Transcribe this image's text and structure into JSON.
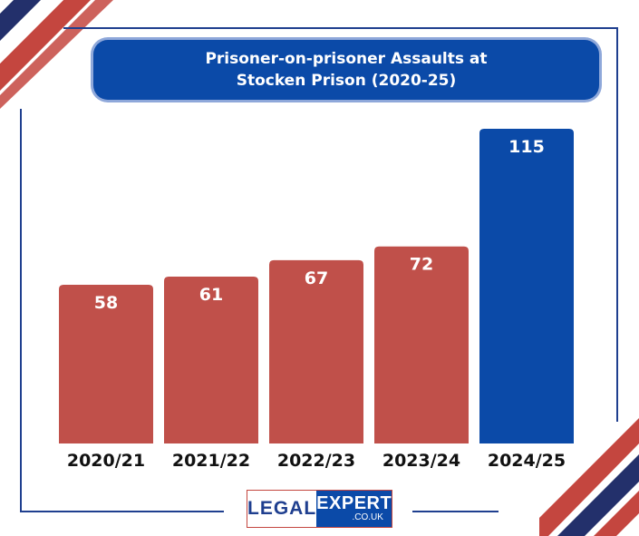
{
  "title_lines": [
    "Prisoner-on-prisoner Assaults at",
    "Stocken Prison (2020-25)"
  ],
  "logo": {
    "left": "LEGAL",
    "right": "EXPERT",
    "sub": ".CO.UK"
  },
  "colors": {
    "bar": "#c0504a",
    "highlight": "#0b4aa8",
    "frame": "#1f3f8f",
    "stripe_dark": "#23306b",
    "stripe_red": "#c4463f"
  },
  "chart_data": {
    "type": "bar",
    "title": "Prisoner-on-prisoner Assaults at Stocken Prison (2020-25)",
    "categories": [
      "2020/21",
      "2021/22",
      "2022/23",
      "2023/24",
      "2024/25"
    ],
    "values": [
      58,
      61,
      67,
      72,
      115
    ],
    "highlight_index": 4,
    "xlabel": "",
    "ylabel": "",
    "ylim": [
      0,
      120
    ],
    "grid": false,
    "legend": "none"
  }
}
